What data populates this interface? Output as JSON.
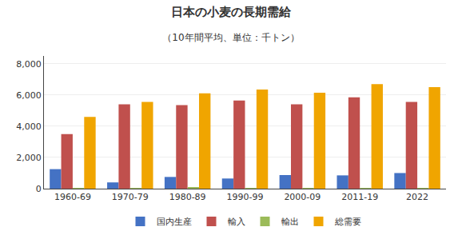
{
  "chart_data": {
    "type": "bar",
    "title": "日本の小麦の長期需給",
    "subtitle": "（10年間平均、単位：千トン）",
    "categories": [
      "1960-69",
      "1970-79",
      "1980-89",
      "1990-99",
      "2000-09",
      "2011-19",
      "2022"
    ],
    "series": [
      {
        "name": "国内生産",
        "color": "#4472C4",
        "values": [
          1250,
          400,
          750,
          650,
          870,
          850,
          1000
        ]
      },
      {
        "name": "輸入",
        "color": "#C0504D",
        "values": [
          3500,
          5400,
          5350,
          5650,
          5400,
          5850,
          5550
        ]
      },
      {
        "name": "輸出",
        "color": "#9BBB59",
        "values": [
          50,
          50,
          100,
          50,
          50,
          50,
          50
        ]
      },
      {
        "name": "総需要",
        "color": "#F0A500",
        "values": [
          4600,
          5550,
          6100,
          6350,
          6150,
          6700,
          6500
        ]
      }
    ],
    "ylim": [
      0,
      8500
    ],
    "yticks": [
      0,
      {
        "value": 2000,
        "label": "2,000"
      },
      {
        "value": 4000,
        "label": "4,000"
      },
      {
        "value": 6000,
        "label": "6,000"
      },
      {
        "value": 8000,
        "label": "8,000"
      }
    ],
    "grid": true,
    "legend": "bottom"
  }
}
